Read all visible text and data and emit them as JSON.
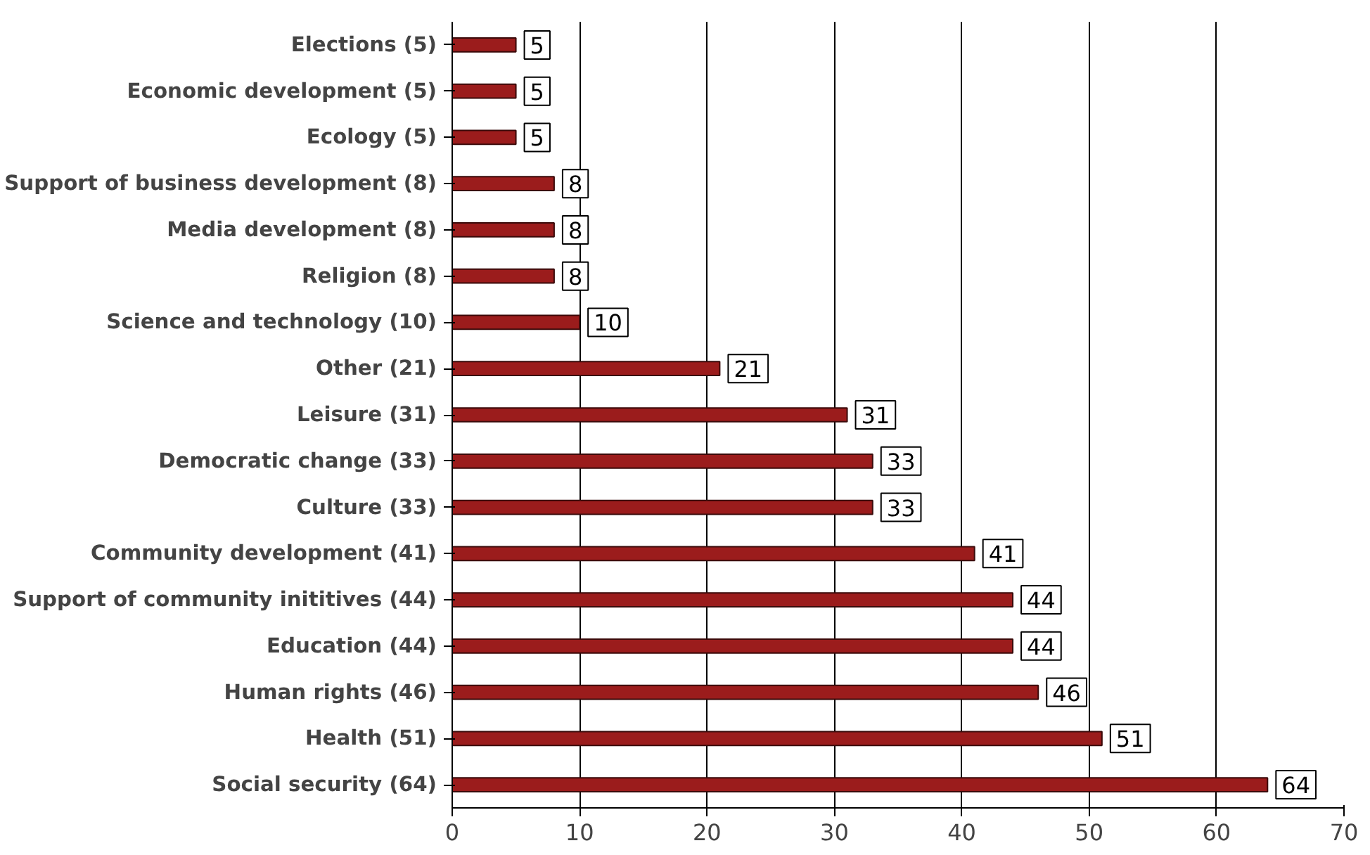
{
  "chart_data": {
    "type": "bar",
    "orientation": "horizontal",
    "categories": [
      "Elections (5)",
      "Economic development (5)",
      "Ecology (5)",
      "Support of business development (8)",
      "Media development (8)",
      "Religion (8)",
      "Science and technology (10)",
      "Other (21)",
      "Leisure (31)",
      "Democratic change (33)",
      "Culture (33)",
      "Community development (41)",
      "Support of community inititives (44)",
      "Education (44)",
      "Human rights (46)",
      "Health (51)",
      "Social security (64)"
    ],
    "values": [
      5,
      5,
      5,
      8,
      8,
      8,
      10,
      21,
      31,
      33,
      33,
      41,
      44,
      44,
      46,
      51,
      64
    ],
    "color": "#9b1c1c",
    "xlim": [
      0,
      70
    ],
    "xticks": [
      0,
      10,
      20,
      30,
      40,
      50,
      60,
      70
    ],
    "grid": "x",
    "data_labels": true
  }
}
